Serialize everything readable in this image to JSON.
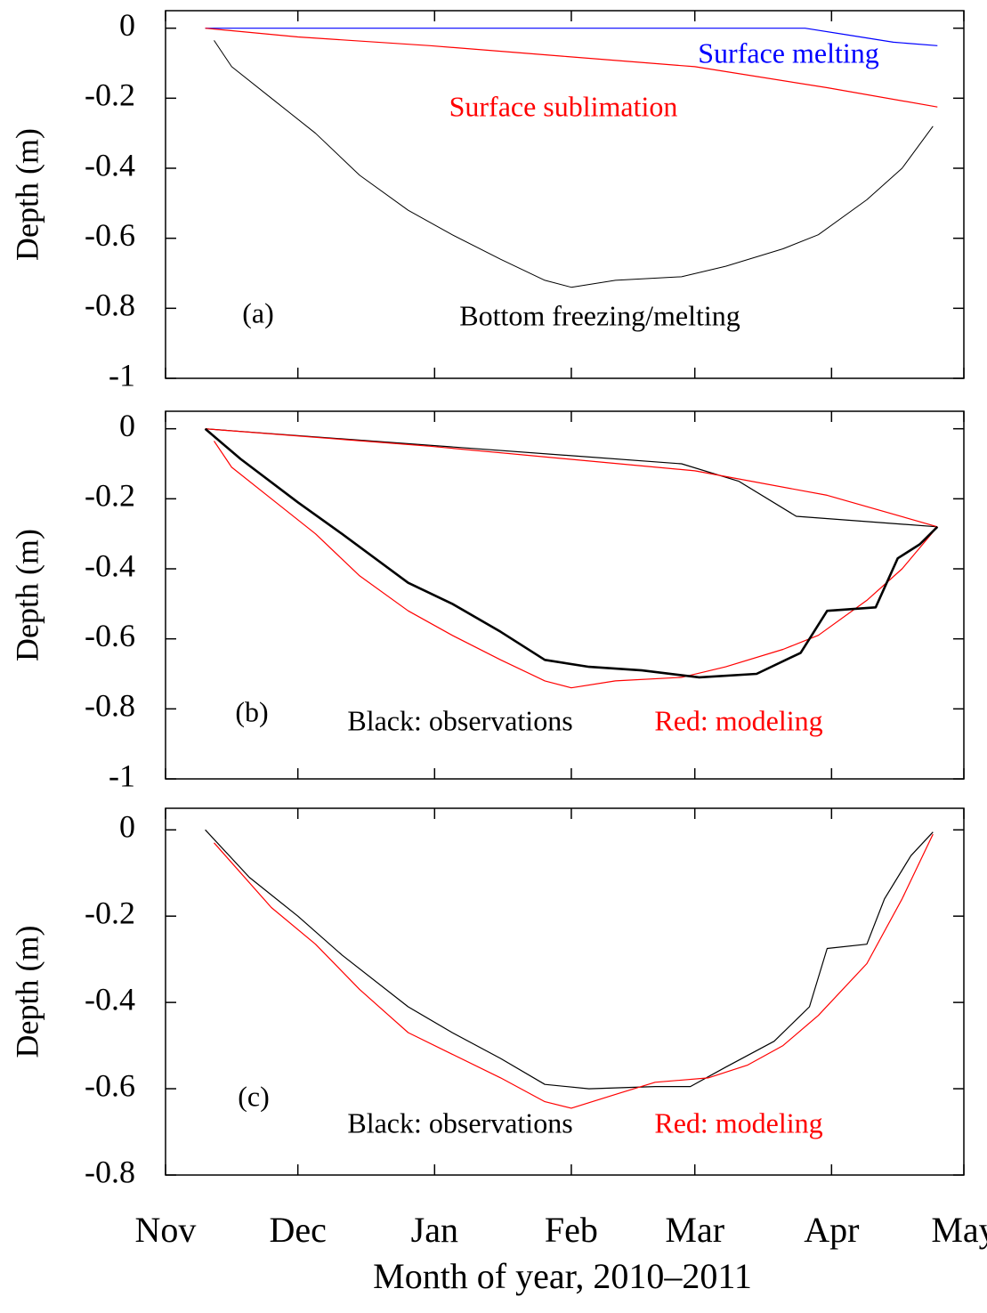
{
  "chart_data": [
    {
      "type": "line",
      "ylabel": "Depth (m)",
      "xlim": [
        0,
        181
      ],
      "ylim": [
        -1,
        0.05
      ],
      "xticks": [
        0,
        30,
        61,
        92,
        120,
        151,
        181
      ],
      "yticks": [
        0,
        -0.2,
        -0.4,
        -0.6,
        -0.8,
        -1
      ],
      "series": [
        {
          "color": "#0000ff",
          "x": [
            9,
            145,
            155,
            165,
            175
          ],
          "values": [
            0,
            0,
            -0.02,
            -0.04,
            -0.05
          ]
        },
        {
          "color": "#ff0000",
          "x": [
            9,
            30,
            60,
            90,
            120,
            150,
            175
          ],
          "values": [
            0,
            -0.025,
            -0.05,
            -0.08,
            -0.11,
            -0.17,
            -0.225
          ]
        },
        {
          "color": "#000000",
          "x": [
            11,
            15,
            24,
            34,
            44,
            55,
            65,
            76,
            86,
            92,
            102,
            117,
            127,
            140,
            148,
            159,
            167,
            174
          ],
          "values": [
            -0.035,
            -0.11,
            -0.2,
            -0.3,
            -0.42,
            -0.52,
            -0.59,
            -0.66,
            -0.72,
            -0.74,
            -0.72,
            -0.71,
            -0.68,
            -0.63,
            -0.59,
            -0.49,
            -0.4,
            -0.28
          ]
        }
      ],
      "annotations": [
        {
          "text": "(a)",
          "color": "#000000"
        },
        {
          "text": "Surface melting",
          "color": "#0000ff"
        },
        {
          "text": "Surface sublimation",
          "color": "#ff0000"
        },
        {
          "text": "Bottom freezing/melting",
          "color": "#000000"
        }
      ]
    },
    {
      "type": "line",
      "ylabel": "Depth (m)",
      "xlim": [
        0,
        181
      ],
      "ylim": [
        -1,
        0.05
      ],
      "xticks": [
        0,
        30,
        61,
        92,
        120,
        151,
        181
      ],
      "yticks": [
        0,
        -0.2,
        -0.4,
        -0.6,
        -0.8,
        -1
      ],
      "series": [
        {
          "color": "#000000",
          "x": [
            9,
            117,
            130,
            143,
            175
          ],
          "values": [
            0,
            -0.1,
            -0.15,
            -0.25,
            -0.28
          ]
        },
        {
          "color": "#ff0000",
          "x": [
            9,
            60,
            90,
            120,
            150,
            175
          ],
          "values": [
            0,
            -0.05,
            -0.085,
            -0.12,
            -0.19,
            -0.28
          ]
        },
        {
          "color": "#ff0000",
          "x": [
            11,
            15,
            24,
            34,
            44,
            55,
            65,
            76,
            86,
            92,
            102,
            117,
            127,
            140,
            148,
            159,
            167,
            175
          ],
          "values": [
            -0.035,
            -0.11,
            -0.2,
            -0.3,
            -0.42,
            -0.52,
            -0.59,
            -0.66,
            -0.72,
            -0.74,
            -0.72,
            -0.71,
            -0.68,
            -0.63,
            -0.59,
            -0.49,
            -0.4,
            -0.28
          ]
        },
        {
          "color": "#000000",
          "x": [
            9,
            17,
            30,
            40,
            55,
            65,
            76,
            86,
            96,
            108,
            121,
            134,
            144,
            150,
            161,
            166,
            171,
            175
          ],
          "values": [
            0,
            -0.086,
            -0.21,
            -0.3,
            -0.44,
            -0.5,
            -0.58,
            -0.66,
            -0.68,
            -0.69,
            -0.71,
            -0.7,
            -0.64,
            -0.52,
            -0.51,
            -0.37,
            -0.33,
            -0.28
          ]
        }
      ],
      "annotations": [
        {
          "text": "(b)",
          "color": "#000000"
        },
        {
          "text": "Black: observations",
          "color": "#000000"
        },
        {
          "text": "Red: modeling",
          "color": "#ff0000"
        }
      ]
    },
    {
      "type": "line",
      "ylabel": "Depth (m)",
      "xlabel": "Month of year, 2010–2011",
      "xlim": [
        0,
        181
      ],
      "ylim": [
        -0.8,
        0.05
      ],
      "xticks": [
        {
          "value": 0,
          "label": "Nov"
        },
        {
          "value": 30,
          "label": "Dec"
        },
        {
          "value": 61,
          "label": "Jan"
        },
        {
          "value": 92,
          "label": "Feb"
        },
        {
          "value": 120,
          "label": "Mar"
        },
        {
          "value": 151,
          "label": "Apr"
        },
        {
          "value": 181,
          "label": "May"
        }
      ],
      "yticks": [
        0,
        -0.2,
        -0.4,
        -0.6,
        -0.8
      ],
      "series": [
        {
          "color": "#000000",
          "x": [
            9,
            19,
            30,
            40,
            55,
            65,
            76,
            86,
            96,
            111,
            119,
            127,
            138,
            146,
            150,
            159,
            163,
            169,
            174
          ],
          "values": [
            0,
            -0.11,
            -0.2,
            -0.29,
            -0.41,
            -0.47,
            -0.53,
            -0.59,
            -0.6,
            -0.595,
            -0.595,
            -0.55,
            -0.49,
            -0.41,
            -0.275,
            -0.265,
            -0.16,
            -0.06,
            -0.005
          ]
        },
        {
          "color": "#ff0000",
          "x": [
            11,
            24,
            34,
            44,
            55,
            65,
            76,
            86,
            92,
            103,
            111,
            123,
            132,
            140,
            148,
            159,
            167,
            174
          ],
          "values": [
            -0.03,
            -0.18,
            -0.265,
            -0.37,
            -0.47,
            -0.52,
            -0.575,
            -0.63,
            -0.645,
            -0.61,
            -0.585,
            -0.575,
            -0.545,
            -0.5,
            -0.43,
            -0.31,
            -0.16,
            -0.01
          ]
        }
      ],
      "annotations": [
        {
          "text": "(c)",
          "color": "#000000"
        },
        {
          "text": "Black: observations",
          "color": "#000000"
        },
        {
          "text": "Red: modeling",
          "color": "#ff0000"
        }
      ]
    }
  ]
}
